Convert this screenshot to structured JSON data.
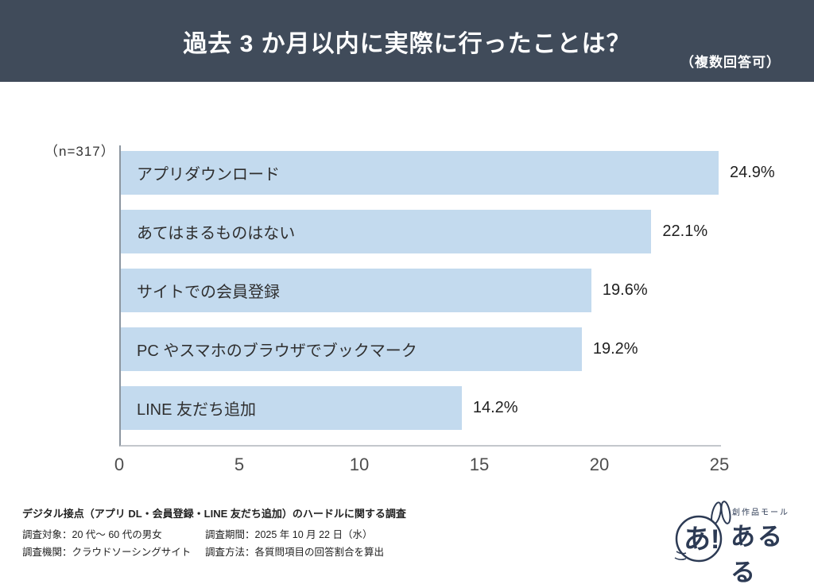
{
  "header": {
    "note": "（複数回答可）",
    "bg_color": "#404b5a"
  },
  "chart_data": {
    "type": "bar",
    "orientation": "horizontal",
    "title": "過去 3 か月以内に実際に行ったことは？",
    "n_label": "（n=317）",
    "categories": [
      "アプリダウンロード",
      "あてはまるものはない",
      "サイトでの会員登録",
      "PC やスマホのブラウザでブックマーク",
      "LINE 友だち追加"
    ],
    "values": [
      24.9,
      22.1,
      19.6,
      19.2,
      14.2
    ],
    "value_labels": [
      "24.9%",
      "22.1%",
      "19.6%",
      "19.2%",
      "14.2%"
    ],
    "xlabel": "",
    "ylabel": "",
    "xlim": [
      0,
      25
    ],
    "x_ticks": [
      0,
      5,
      10,
      15,
      20,
      25
    ],
    "bar_color": "#c3daee",
    "grid": false,
    "legend": false
  },
  "footer": {
    "survey_title": "デジタル接点（アプリ DL・会員登録・LINE 友だち追加）のハードルに関する調査",
    "rows": [
      {
        "left": "調査対象：20 代～ 60 代の男女",
        "right": "調査期間：2025 年 10 月 22 日（水）"
      },
      {
        "left": "調査機関：クラウドソーシングサイト",
        "right": "調査方法：各質問項目の回答割合を算出"
      }
    ]
  },
  "logo": {
    "mark": "あ!",
    "tagline": "創作品モール",
    "brand": "あるる"
  }
}
